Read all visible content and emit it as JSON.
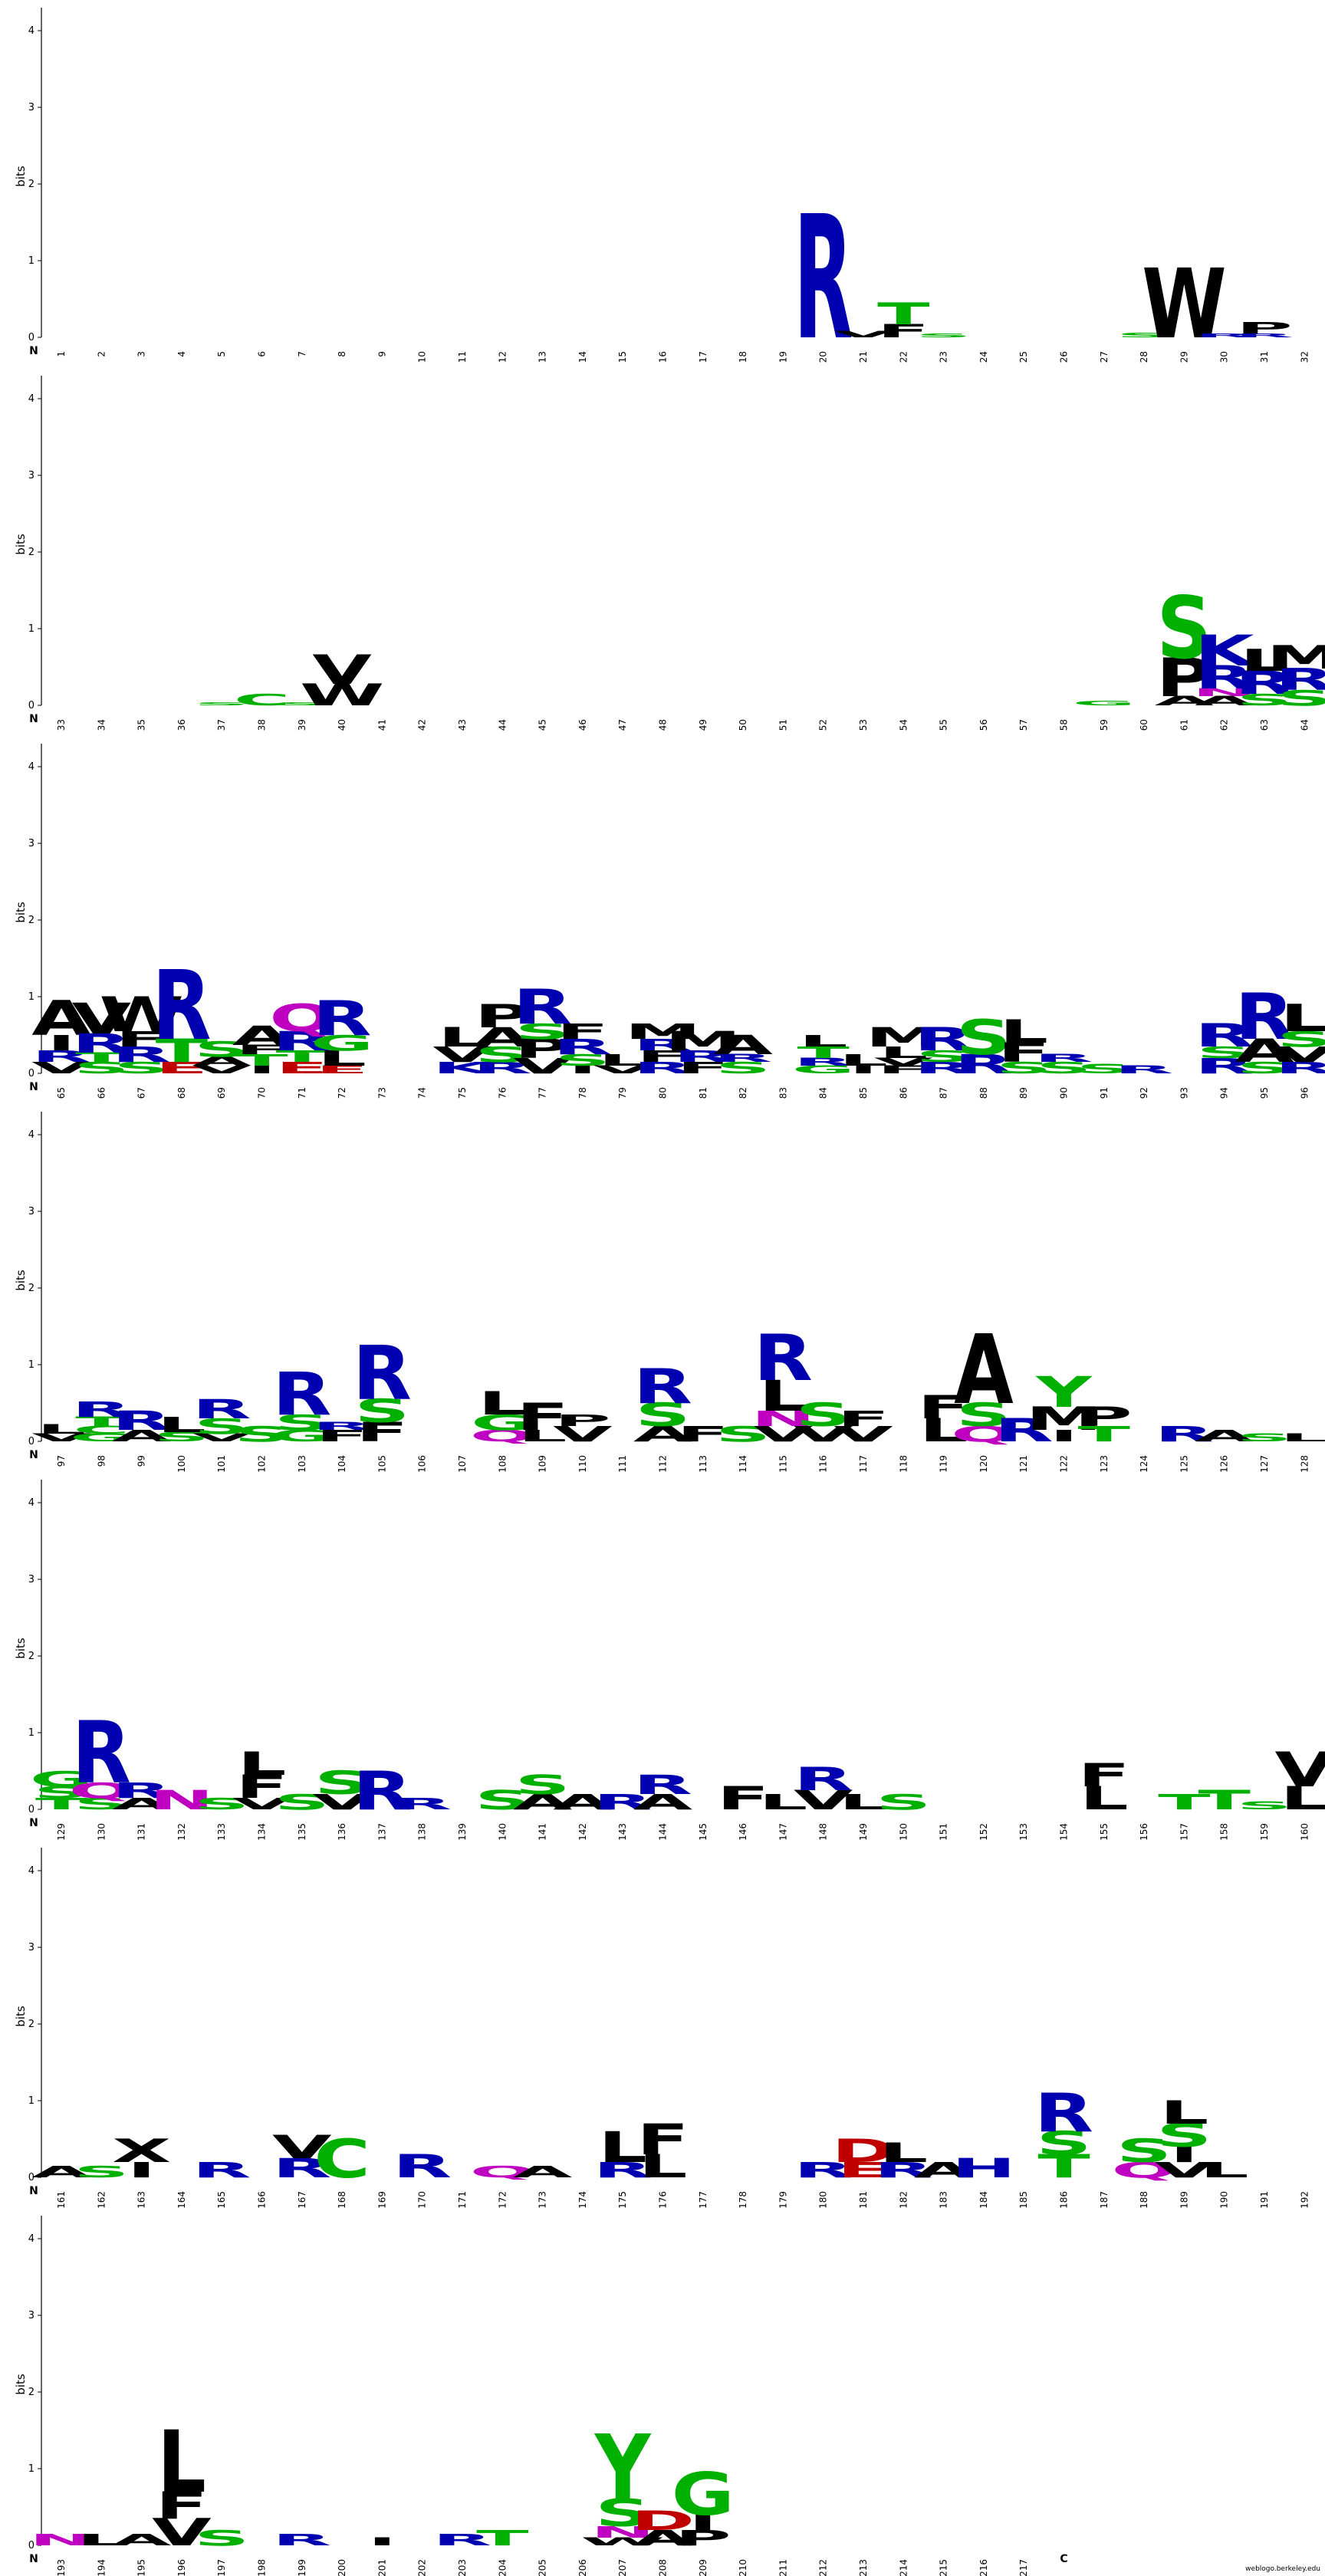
{
  "chart_data": {
    "type": "sequence-logo",
    "ylabel": "bits",
    "yticks": [
      0,
      1,
      2,
      3,
      4
    ],
    "ylim": [
      0,
      4.3
    ],
    "n_label": "N",
    "c_label": "C",
    "footer": "weblogo.berkeley.edu",
    "colors": {
      "A": "#000000",
      "C": "#00b000",
      "D": "#c00000",
      "E": "#c00000",
      "F": "#000000",
      "G": "#00b000",
      "H": "#0000b0",
      "I": "#000000",
      "K": "#0000b0",
      "L": "#000000",
      "M": "#000000",
      "N": "#c000c0",
      "P": "#000000",
      "Q": "#c000c0",
      "R": "#0000b0",
      "S": "#00b000",
      "T": "#00b000",
      "V": "#000000",
      "W": "#000000",
      "Y": "#00b000"
    },
    "rows": [
      {
        "start": 1,
        "end": 32,
        "show_c": true
      },
      {
        "start": 33,
        "end": 64,
        "show_c": true
      },
      {
        "start": 65,
        "end": 96,
        "show_c": true
      },
      {
        "start": 97,
        "end": 128,
        "show_c": true
      },
      {
        "start": 129,
        "end": 160,
        "show_c": true
      },
      {
        "start": 161,
        "end": 192,
        "show_c": true
      },
      {
        "start": 193,
        "end": 224,
        "show_c": true,
        "last_pos": 217
      }
    ],
    "positions": {
      "20": [
        [
          "R",
          1.6
        ]
      ],
      "21": [
        [
          "V",
          0.08
        ]
      ],
      "22": [
        [
          "F",
          0.17
        ],
        [
          "T",
          0.28
        ]
      ],
      "23": [
        [
          "S",
          0.05
        ]
      ],
      "28": [
        [
          "S",
          0.06
        ]
      ],
      "29": [
        [
          "W",
          0.9
        ]
      ],
      "30": [
        [
          "R",
          0.05
        ]
      ],
      "31": [
        [
          "R",
          0.05
        ],
        [
          "P",
          0.15
        ]
      ],
      "37": [
        [
          "S",
          0.04
        ]
      ],
      "38": [
        [
          "C",
          0.15
        ]
      ],
      "39": [
        [
          "S",
          0.04
        ]
      ],
      "40": [
        [
          "W",
          0.28
        ],
        [
          "V",
          0.38
        ]
      ],
      "59": [
        [
          "G",
          0.06
        ]
      ],
      "61": [
        [
          "A",
          0.12
        ],
        [
          "P",
          0.5
        ],
        [
          "S",
          0.8
        ]
      ],
      "62": [
        [
          "A",
          0.12
        ],
        [
          "N",
          0.1
        ],
        [
          "R",
          0.3
        ],
        [
          "K",
          0.4
        ]
      ],
      "63": [
        [
          "S",
          0.15
        ],
        [
          "R",
          0.3
        ],
        [
          "L",
          0.28
        ]
      ],
      "64": [
        [
          "S",
          0.2
        ],
        [
          "R",
          0.28
        ],
        [
          "M",
          0.3
        ]
      ],
      "65": [
        [
          "V",
          0.15
        ],
        [
          "R",
          0.15
        ],
        [
          "I",
          0.2
        ],
        [
          "A",
          0.45
        ]
      ],
      "66": [
        [
          "S",
          0.15
        ],
        [
          "T",
          0.12
        ],
        [
          "R",
          0.25
        ],
        [
          "V",
          0.4
        ]
      ],
      "67": [
        [
          "S",
          0.15
        ],
        [
          "R",
          0.2
        ],
        [
          "F",
          0.2
        ],
        [
          "W",
          0.45
        ]
      ],
      "68": [
        [
          "E",
          0.15
        ],
        [
          "T",
          0.3
        ],
        [
          "R",
          0.9
        ]
      ],
      "69": [
        [
          "V",
          0.1
        ],
        [
          "A",
          0.12
        ],
        [
          "S",
          0.2
        ]
      ],
      "70": [
        [
          "I",
          0.1
        ],
        [
          "T",
          0.15
        ],
        [
          "F",
          0.12
        ],
        [
          "A",
          0.25
        ]
      ],
      "71": [
        [
          "E",
          0.15
        ],
        [
          "T",
          0.15
        ],
        [
          "R",
          0.25
        ],
        [
          "Q",
          0.35
        ]
      ],
      "72": [
        [
          "E",
          0.1
        ],
        [
          "L",
          0.2
        ],
        [
          "G",
          0.2
        ],
        [
          "R",
          0.45
        ]
      ],
      "75": [
        [
          "K",
          0.15
        ],
        [
          "V",
          0.2
        ],
        [
          "L",
          0.25
        ]
      ],
      "76": [
        [
          "R",
          0.15
        ],
        [
          "S",
          0.2
        ],
        [
          "A",
          0.25
        ],
        [
          "P",
          0.3
        ]
      ],
      "77": [
        [
          "V",
          0.2
        ],
        [
          "P",
          0.25
        ],
        [
          "S",
          0.2
        ],
        [
          "R",
          0.45
        ]
      ],
      "78": [
        [
          "I",
          0.1
        ],
        [
          "S",
          0.15
        ],
        [
          "R",
          0.2
        ],
        [
          "F",
          0.2
        ]
      ],
      "79": [
        [
          "V",
          0.1
        ],
        [
          "L",
          0.15
        ]
      ],
      "80": [
        [
          "R",
          0.15
        ],
        [
          "F",
          0.15
        ],
        [
          "R",
          0.15
        ],
        [
          "M",
          0.2
        ]
      ],
      "81": [
        [
          "F",
          0.15
        ],
        [
          "R",
          0.15
        ],
        [
          "M",
          0.25
        ]
      ],
      "82": [
        [
          "S",
          0.15
        ],
        [
          "R",
          0.1
        ],
        [
          "A",
          0.25
        ]
      ],
      "84": [
        [
          "G",
          0.1
        ],
        [
          "R",
          0.1
        ],
        [
          "T",
          0.15
        ],
        [
          "L",
          0.15
        ]
      ],
      "85": [
        [
          "I",
          0.1
        ],
        [
          "L",
          0.15
        ]
      ],
      "86": [
        [
          "F",
          0.1
        ],
        [
          "V",
          0.1
        ],
        [
          "L",
          0.15
        ],
        [
          "M",
          0.25
        ]
      ],
      "87": [
        [
          "R",
          0.15
        ],
        [
          "S",
          0.15
        ],
        [
          "R",
          0.3
        ]
      ],
      "88": [
        [
          "R",
          0.25
        ],
        [
          "S",
          0.45
        ]
      ],
      "89": [
        [
          "S",
          0.15
        ],
        [
          "F",
          0.25
        ],
        [
          "L",
          0.3
        ]
      ],
      "90": [
        [
          "S",
          0.15
        ],
        [
          "R",
          0.1
        ]
      ],
      "91": [
        [
          "S",
          0.12
        ]
      ],
      "92": [
        [
          "R",
          0.1
        ]
      ],
      "94": [
        [
          "R",
          0.2
        ],
        [
          "S",
          0.15
        ],
        [
          "R",
          0.3
        ]
      ],
      "95": [
        [
          "S",
          0.15
        ],
        [
          "A",
          0.3
        ],
        [
          "R",
          0.6
        ]
      ],
      "96": [
        [
          "R",
          0.15
        ],
        [
          "V",
          0.2
        ],
        [
          "S",
          0.2
        ],
        [
          "L",
          0.35
        ]
      ],
      "97": [
        [
          "V",
          0.1
        ],
        [
          "L",
          0.12
        ]
      ],
      "98": [
        [
          "G",
          0.1
        ],
        [
          "C",
          0.1
        ],
        [
          "T",
          0.12
        ],
        [
          "R",
          0.2
        ]
      ],
      "99": [
        [
          "A",
          0.15
        ],
        [
          "R",
          0.25
        ]
      ],
      "100": [
        [
          "S",
          0.12
        ],
        [
          "L",
          0.2
        ]
      ],
      "101": [
        [
          "V",
          0.1
        ],
        [
          "S",
          0.2
        ],
        [
          "R",
          0.25
        ]
      ],
      "102": [
        [
          "S",
          0.2
        ]
      ],
      "103": [
        [
          "G",
          0.15
        ],
        [
          "S",
          0.2
        ],
        [
          "R",
          0.55
        ]
      ],
      "104": [
        [
          "F",
          0.15
        ],
        [
          "R",
          0.1
        ]
      ],
      "105": [
        [
          "F",
          0.25
        ],
        [
          "S",
          0.3
        ],
        [
          "R",
          0.7
        ]
      ],
      "108": [
        [
          "Q",
          0.15
        ],
        [
          "G",
          0.2
        ],
        [
          "L",
          0.3
        ]
      ],
      "109": [
        [
          "L",
          0.15
        ],
        [
          "F",
          0.35
        ]
      ],
      "110": [
        [
          "V",
          0.2
        ],
        [
          "P",
          0.15
        ]
      ],
      "112": [
        [
          "A",
          0.2
        ],
        [
          "S",
          0.3
        ],
        [
          "R",
          0.45
        ]
      ],
      "113": [
        [
          "F",
          0.2
        ]
      ],
      "114": [
        [
          "S",
          0.2
        ]
      ],
      "115": [
        [
          "V",
          0.2
        ],
        [
          "N",
          0.2
        ],
        [
          "L",
          0.4
        ],
        [
          "R",
          0.6
        ]
      ],
      "116": [
        [
          "V",
          0.2
        ],
        [
          "S",
          0.3
        ]
      ],
      "117": [
        [
          "V",
          0.2
        ],
        [
          "F",
          0.2
        ]
      ],
      "119": [
        [
          "L",
          0.3
        ],
        [
          "F",
          0.3
        ]
      ],
      "120": [
        [
          "Q",
          0.2
        ],
        [
          "S",
          0.3
        ],
        [
          "A",
          0.9
        ]
      ],
      "121": [
        [
          "R",
          0.3
        ]
      ],
      "122": [
        [
          "I",
          0.15
        ],
        [
          "M",
          0.3
        ],
        [
          "Y",
          0.4
        ]
      ],
      "123": [
        [
          "T",
          0.2
        ],
        [
          "P",
          0.25
        ]
      ],
      "125": [
        [
          "R",
          0.2
        ]
      ],
      "126": [
        [
          "A",
          0.15
        ]
      ],
      "127": [
        [
          "S",
          0.1
        ]
      ],
      "128": [
        [
          "L",
          0.1
        ]
      ],
      "129": [
        [
          "T",
          0.15
        ],
        [
          "S",
          0.15
        ],
        [
          "G",
          0.2
        ]
      ],
      "130": [
        [
          "S",
          0.15
        ],
        [
          "Q",
          0.2
        ],
        [
          "R",
          0.8
        ]
      ],
      "131": [
        [
          "A",
          0.15
        ],
        [
          "R",
          0.2
        ]
      ],
      "132": [
        [
          "N",
          0.25
        ]
      ],
      "133": [
        [
          "S",
          0.15
        ]
      ],
      "134": [
        [
          "V",
          0.15
        ],
        [
          "F",
          0.3
        ],
        [
          "L",
          0.3
        ]
      ],
      "135": [
        [
          "S",
          0.2
        ]
      ],
      "136": [
        [
          "V",
          0.2
        ],
        [
          "S",
          0.3
        ]
      ],
      "137": [
        [
          "R",
          0.5
        ]
      ],
      "138": [
        [
          "R",
          0.15
        ]
      ],
      "140": [
        [
          "S",
          0.25
        ]
      ],
      "141": [
        [
          "A",
          0.2
        ],
        [
          "S",
          0.25
        ]
      ],
      "142": [
        [
          "A",
          0.2
        ]
      ],
      "143": [
        [
          "R",
          0.2
        ]
      ],
      "144": [
        [
          "A",
          0.2
        ],
        [
          "R",
          0.25
        ]
      ],
      "146": [
        [
          "F",
          0.3
        ]
      ],
      "147": [
        [
          "L",
          0.2
        ]
      ],
      "148": [
        [
          "V",
          0.25
        ],
        [
          "R",
          0.3
        ]
      ],
      "149": [
        [
          "L",
          0.2
        ]
      ],
      "150": [
        [
          "S",
          0.2
        ]
      ],
      "155": [
        [
          "L",
          0.3
        ],
        [
          "F",
          0.3
        ]
      ],
      "157": [
        [
          "T",
          0.2
        ]
      ],
      "158": [
        [
          "T",
          0.25
        ]
      ],
      "159": [
        [
          "S",
          0.1
        ]
      ],
      "160": [
        [
          "L",
          0.3
        ],
        [
          "V",
          0.45
        ]
      ],
      "161": [
        [
          "A",
          0.15
        ]
      ],
      "162": [
        [
          "S",
          0.15
        ]
      ],
      "163": [
        [
          "I",
          0.2
        ],
        [
          "X",
          0.3
        ]
      ],
      "165": [
        [
          "R",
          0.2
        ]
      ],
      "167": [
        [
          "R",
          0.25
        ],
        [
          "V",
          0.3
        ]
      ],
      "168": [
        [
          "C",
          0.5
        ]
      ],
      "170": [
        [
          "R",
          0.3
        ]
      ],
      "172": [
        [
          "Q",
          0.15
        ]
      ],
      "173": [
        [
          "A",
          0.15
        ]
      ],
      "175": [
        [
          "R",
          0.2
        ],
        [
          "L",
          0.4
        ]
      ],
      "176": [
        [
          "L",
          0.3
        ],
        [
          "F",
          0.4
        ]
      ],
      "180": [
        [
          "R",
          0.2
        ]
      ],
      "181": [
        [
          "E",
          0.2
        ],
        [
          "D",
          0.3
        ]
      ],
      "182": [
        [
          "R",
          0.2
        ],
        [
          "L",
          0.25
        ]
      ],
      "183": [
        [
          "A",
          0.2
        ]
      ],
      "184": [
        [
          "H",
          0.25
        ]
      ],
      "186": [
        [
          "T",
          0.3
        ],
        [
          "S",
          0.3
        ],
        [
          "R",
          0.5
        ]
      ],
      "188": [
        [
          "Q",
          0.2
        ],
        [
          "S",
          0.3
        ]
      ],
      "189": [
        [
          "V",
          0.2
        ],
        [
          "I",
          0.2
        ],
        [
          "S",
          0.3
        ],
        [
          "L",
          0.3
        ]
      ],
      "190": [
        [
          "L",
          0.2
        ]
      ],
      "193": [
        [
          "N",
          0.15
        ]
      ],
      "194": [
        [
          "L",
          0.15
        ]
      ],
      "195": [
        [
          "A",
          0.15
        ]
      ],
      "196": [
        [
          "V",
          0.35
        ],
        [
          "F",
          0.35
        ],
        [
          "L",
          0.8
        ]
      ],
      "197": [
        [
          "S",
          0.2
        ]
      ],
      "199": [
        [
          "R",
          0.15
        ]
      ],
      "201": [
        [
          "I",
          0.1
        ]
      ],
      "203": [
        [
          "R",
          0.15
        ]
      ],
      "204": [
        [
          "T",
          0.2
        ]
      ],
      "207": [
        [
          "W",
          0.1
        ],
        [
          "N",
          0.15
        ],
        [
          "S",
          0.35
        ],
        [
          "Y",
          0.85
        ]
      ],
      "208": [
        [
          "A",
          0.2
        ],
        [
          "D",
          0.25
        ]
      ],
      "209": [
        [
          "P",
          0.2
        ],
        [
          "I",
          0.2
        ],
        [
          "G",
          0.55
        ]
      ]
    }
  }
}
